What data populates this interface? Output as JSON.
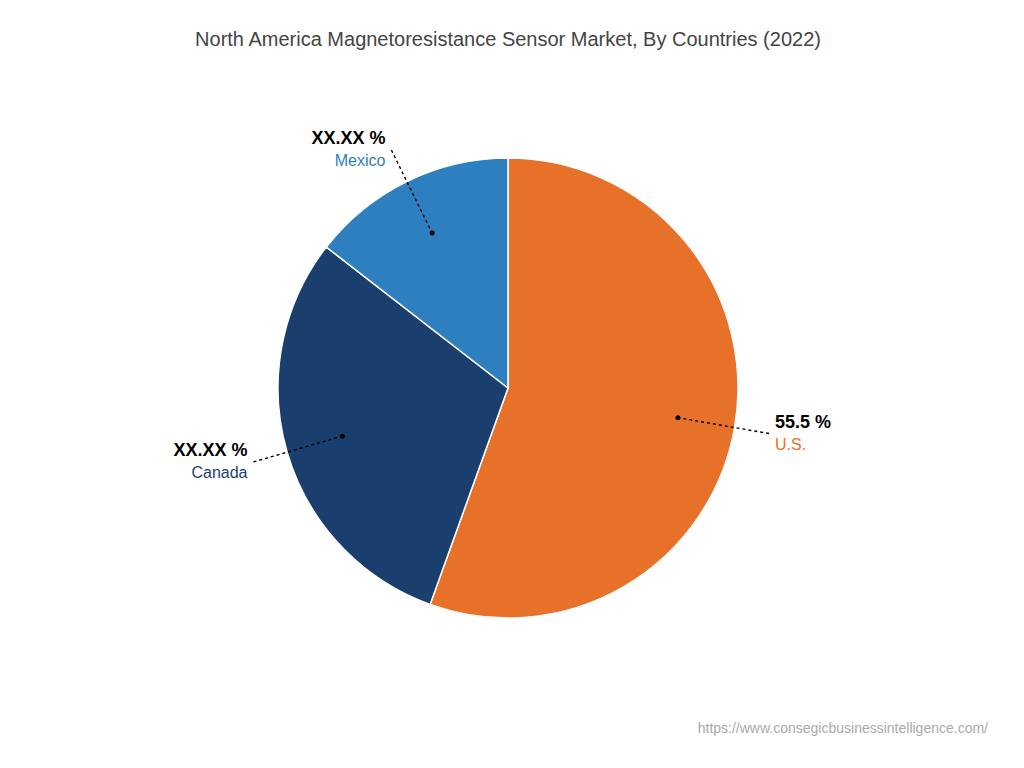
{
  "chart_data": {
    "type": "pie",
    "title": "North America Magnetoresistance Sensor Market, By Countries (2022)",
    "categories": [
      "U.S.",
      "Canada",
      "Mexico"
    ],
    "values": [
      55.5,
      30.0,
      14.5
    ],
    "value_labels": [
      "55.5 %",
      "XX.XX %",
      "XX.XX %"
    ],
    "colors": [
      "#E8712A",
      "#1A3F6F",
      "#2E7FC0"
    ],
    "data_labels": true,
    "annotations": [
      "https://www.consegicbusinessintelligence.com/"
    ]
  }
}
